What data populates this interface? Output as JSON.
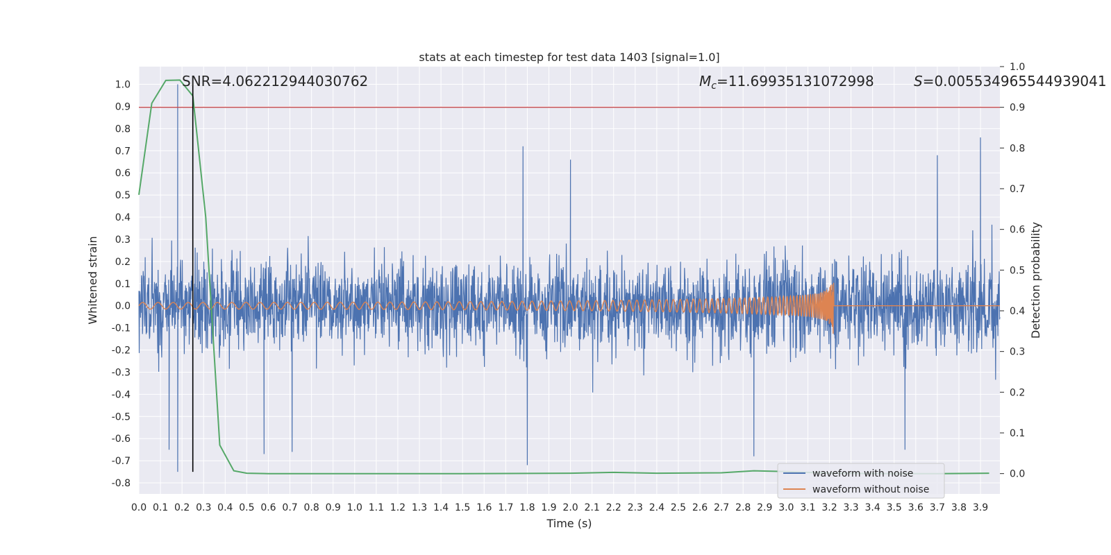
{
  "chart_data": {
    "type": "line",
    "title": "stats at each timestep for test data 1403 [signal=1.0]",
    "xlabel": "Time (s)",
    "ylabel": "Whitened strain",
    "y2label": "Detection probability",
    "xlim": [
      0.0,
      3.99
    ],
    "ylim": [
      -0.85,
      1.08
    ],
    "y2lim": [
      -0.05,
      1.0
    ],
    "xticks": [
      "0.0",
      "0.1",
      "0.2",
      "0.3",
      "0.4",
      "0.5",
      "0.6",
      "0.7",
      "0.8",
      "0.9",
      "1.0",
      "1.1",
      "1.2",
      "1.3",
      "1.4",
      "1.5",
      "1.6",
      "1.7",
      "1.8",
      "1.9",
      "2.0",
      "2.1",
      "2.2",
      "2.3",
      "2.4",
      "2.5",
      "2.6",
      "2.7",
      "2.8",
      "2.9",
      "3.0",
      "3.1",
      "3.2",
      "3.3",
      "3.4",
      "3.5",
      "3.6",
      "3.7",
      "3.8",
      "3.9"
    ],
    "yticks": [
      "1.0",
      "0.9",
      "0.8",
      "0.7",
      "0.6",
      "0.5",
      "0.4",
      "0.3",
      "0.2",
      "0.1",
      "0.0",
      "-0.1",
      "-0.2",
      "-0.3",
      "-0.4",
      "-0.5",
      "-0.6",
      "-0.7",
      "-0.8"
    ],
    "y2ticks": [
      "1.0",
      "0.9",
      "0.8",
      "0.7",
      "0.6",
      "0.5",
      "0.4",
      "0.3",
      "0.2",
      "0.1",
      "0.0"
    ],
    "annotations": {
      "snr": "SNR=4.062212944030762",
      "mc_symbol": "M",
      "mc_sub": "c",
      "mc_value": "=11.69935131072998",
      "s_symbol": "S",
      "s_value": "=0.005534965544939041"
    },
    "series": [
      {
        "name": "waveform with noise",
        "color": "#4c72b0",
        "axis": "left",
        "description": "dense noisy strain, mostly within ±0.5, peak 1.0 near t=0.18",
        "spikes": [
          {
            "t": 0.18,
            "y": 1.0
          },
          {
            "t": 0.18,
            "y": -0.75
          },
          {
            "t": 0.14,
            "y": -0.65
          },
          {
            "t": 1.8,
            "y": -0.72
          },
          {
            "t": 1.78,
            "y": 0.72
          },
          {
            "t": 2.0,
            "y": 0.66
          },
          {
            "t": 3.9,
            "y": 0.76
          },
          {
            "t": 3.7,
            "y": 0.68
          },
          {
            "t": 3.55,
            "y": -0.65
          },
          {
            "t": 2.85,
            "y": -0.68
          },
          {
            "t": 0.58,
            "y": -0.67
          },
          {
            "t": 0.71,
            "y": -0.66
          }
        ]
      },
      {
        "name": "waveform without noise",
        "color": "#dd8452",
        "axis": "left",
        "description": "chirp, amplitude growing to merger at t≈3.22, then flat",
        "merger_time": 3.22,
        "peak_amplitude": 0.14,
        "min_amplitude": -0.15
      },
      {
        "name": "detection probability",
        "color": "#55a868",
        "axis": "right",
        "x": [
          0.0,
          0.06,
          0.125,
          0.19,
          0.25,
          0.31,
          0.375,
          0.44,
          0.5,
          0.6,
          0.8,
          1.0,
          1.5,
          2.0,
          2.2,
          2.4,
          2.7,
          2.85,
          3.0,
          3.2,
          3.5,
          3.7,
          3.94
        ],
        "values": [
          0.685,
          0.91,
          0.966,
          0.967,
          0.928,
          0.63,
          0.07,
          0.007,
          0.001,
          0.0,
          0.0,
          0.0,
          0.0,
          0.001,
          0.003,
          0.001,
          0.002,
          0.007,
          0.005,
          0.001,
          0.0,
          0.0,
          0.001
        ]
      }
    ],
    "threshold": {
      "value": 0.9,
      "axis": "right",
      "color": "#c44e52"
    },
    "marker_time": 0.25,
    "marker_range": [
      -0.75,
      1.0
    ],
    "legend": {
      "position": "bottom-right",
      "entries": [
        "waveform with noise",
        "waveform without noise"
      ]
    },
    "colors": {
      "background": "#eaeaf2",
      "grid": "#ffffff",
      "noise": "#4c72b0",
      "clean": "#dd8452",
      "prob": "#55a868",
      "threshold": "#c44e52",
      "marker": "#000000"
    }
  }
}
